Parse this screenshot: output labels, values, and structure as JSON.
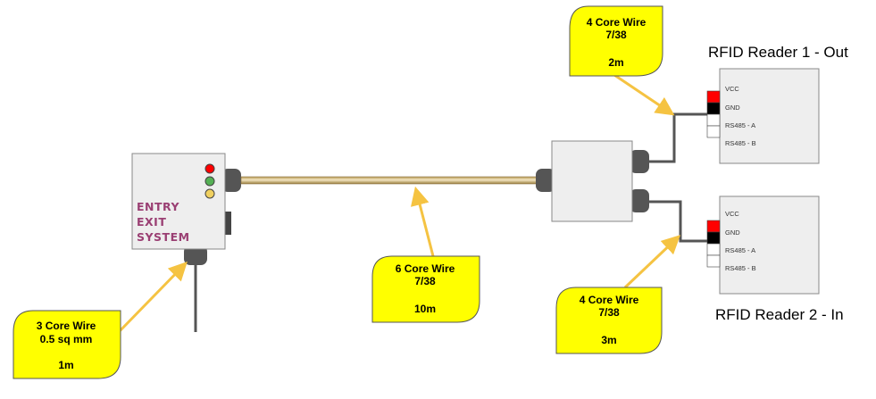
{
  "colors": {
    "callout_fill": "#ffff00",
    "arrow": "#f5c342",
    "entry_text": "#9a3f73",
    "box_fill": "#eeeeee",
    "gland": "#555555",
    "led_red": "#ff0000",
    "led_green": "#55b055",
    "led_yellow": "#f0d060",
    "pin_red": "#ff0000",
    "pin_black": "#000000"
  },
  "entry_exit_system": {
    "line1": "ENTRY",
    "line2": "EXIT",
    "line3": "SYSTEM",
    "leds": [
      "red-led-icon",
      "green-led-icon",
      "yellow-led-icon"
    ]
  },
  "readers": [
    {
      "title": "RFID Reader 1 - Out",
      "pins": [
        "VCC",
        "GND",
        "RS485 - A",
        "RS485 - B"
      ]
    },
    {
      "title": "RFID Reader 2 - In",
      "pins": [
        "VCC",
        "GND",
        "RS485 - A",
        "RS485 - B"
      ]
    }
  ],
  "callouts": {
    "reader1_wire": {
      "line1": "4 Core Wire",
      "line2": "7/38",
      "length": "2m"
    },
    "main_wire": {
      "line1": "6 Core Wire",
      "line2": "7/38",
      "length": "10m"
    },
    "reader2_wire": {
      "line1": "4 Core Wire",
      "line2": "7/38",
      "length": "3m"
    },
    "power_wire": {
      "line1": "3 Core Wire",
      "line2": "0.5 sq mm",
      "length": "1m"
    }
  }
}
